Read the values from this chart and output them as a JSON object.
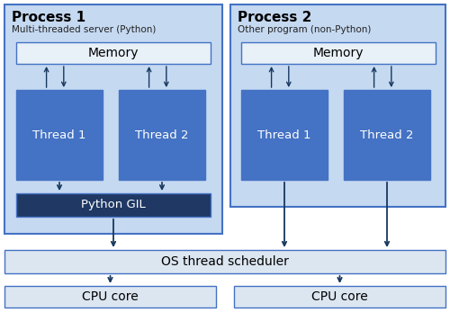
{
  "fig_width": 5.0,
  "fig_height": 3.47,
  "dpi": 100,
  "bg_color": "#ffffff",
  "light_blue": "#c5d9f1",
  "thread_fill": "#4472c4",
  "gil_fill": "#1f3864",
  "memory_fill": "#e8f0f8",
  "os_fill": "#dce6f1",
  "cpu_fill": "#dce6f1",
  "arrow_color": "#17375e",
  "border_dark": "#4472c4",
  "process1_label": "Process 1",
  "process1_sub": "Multi-threaded server (Python)",
  "process2_label": "Process 2",
  "process2_sub": "Other program (non-Python)",
  "memory_label": "Memory",
  "thread1_label": "Thread 1",
  "thread2_label": "Thread 2",
  "gil_label": "Python GIL",
  "os_label": "OS thread scheduler",
  "cpu_label": "CPU core"
}
